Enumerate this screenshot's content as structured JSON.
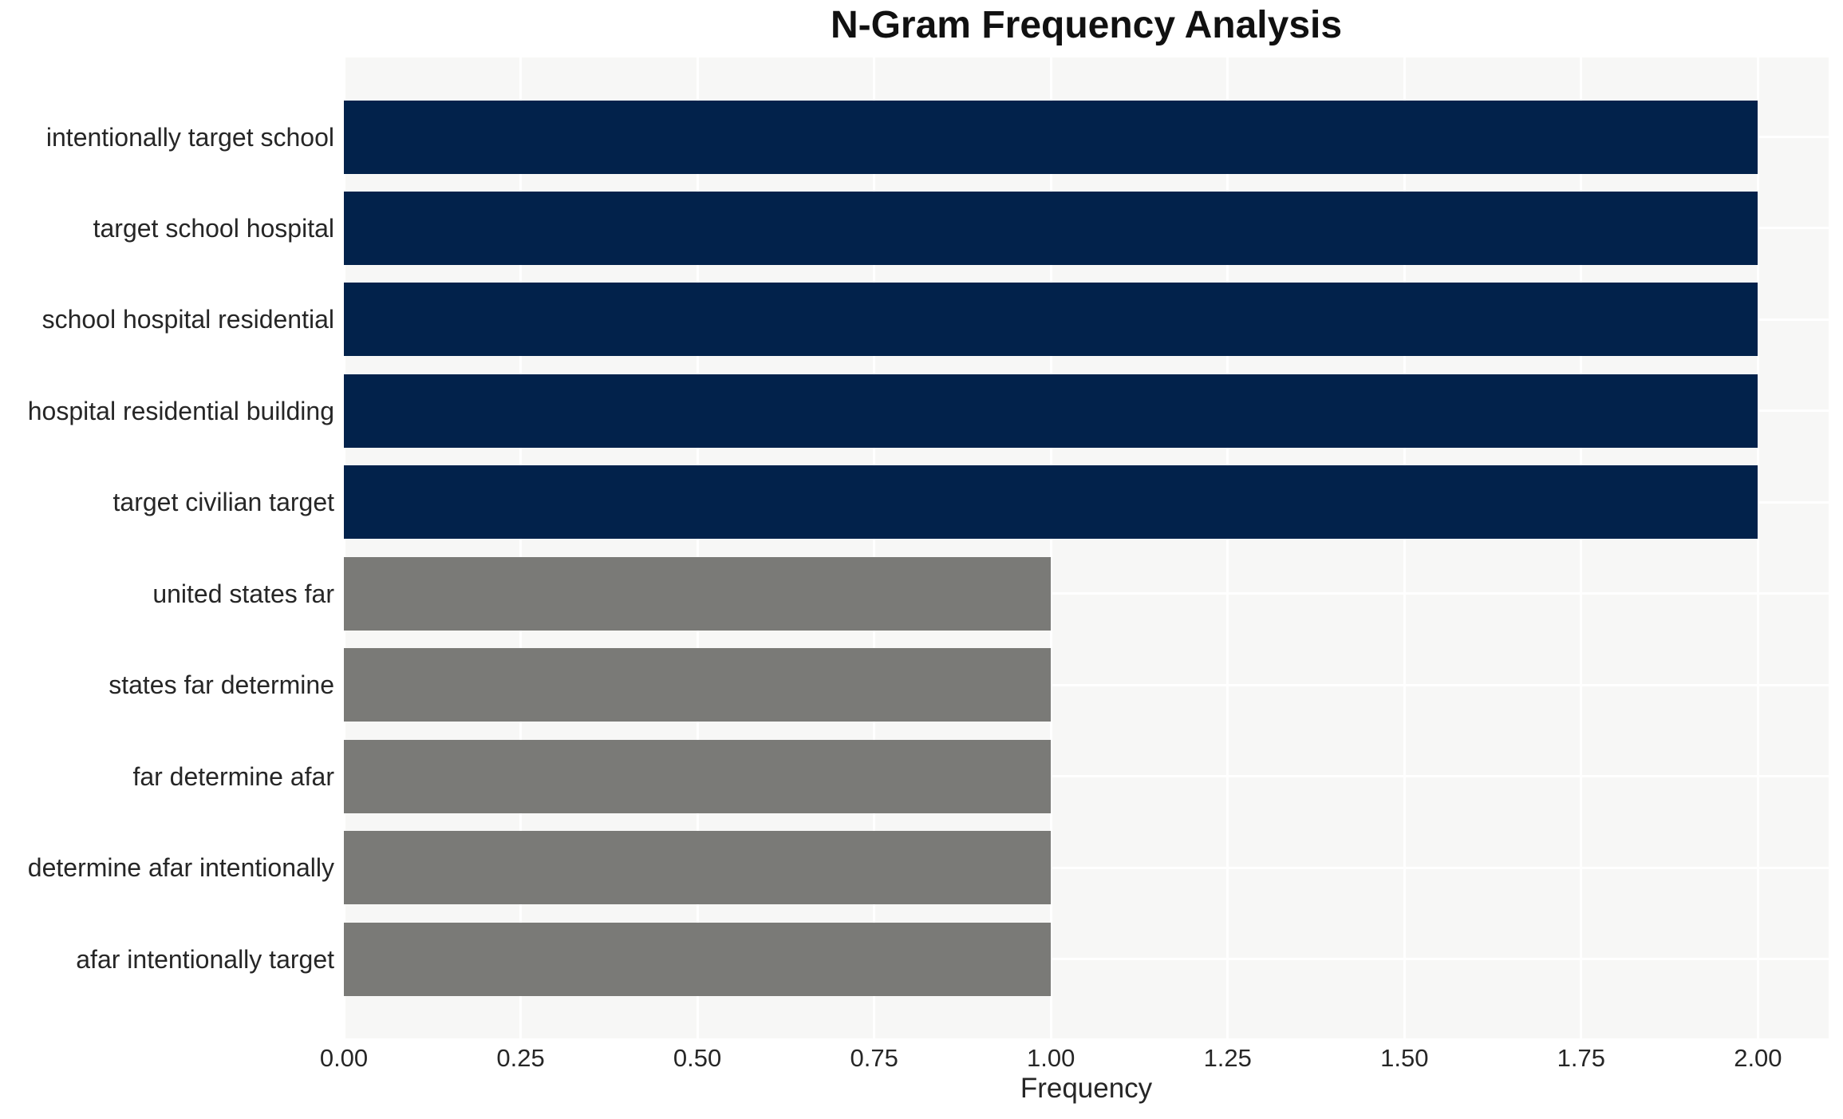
{
  "chart_data": {
    "type": "bar",
    "orientation": "horizontal",
    "title": "N-Gram Frequency Analysis",
    "xlabel": "Frequency",
    "ylabel": "",
    "categories": [
      "intentionally target school",
      "target school hospital",
      "school hospital residential",
      "hospital residential building",
      "target civilian target",
      "united states far",
      "states far determine",
      "far determine afar",
      "determine afar intentionally",
      "afar intentionally target"
    ],
    "values": [
      2,
      2,
      2,
      2,
      2,
      1,
      1,
      1,
      1,
      1
    ],
    "bar_colors": [
      "#02224b",
      "#02224b",
      "#02224b",
      "#02224b",
      "#02224b",
      "#7a7a77",
      "#7a7a77",
      "#7a7a77",
      "#7a7a77",
      "#7a7a77"
    ],
    "xlim": [
      0,
      2.1
    ],
    "xticks": [
      0,
      0.25,
      0.5,
      0.75,
      1.0,
      1.25,
      1.5,
      1.75,
      2.0
    ],
    "xtick_labels": [
      "0.00",
      "0.25",
      "0.50",
      "0.75",
      "1.00",
      "1.25",
      "1.50",
      "1.75",
      "2.00"
    ],
    "grid": true,
    "legend_position": "none",
    "colors": {
      "bar_high": "#02224b",
      "bar_low": "#7a7a77",
      "plot_background": "#f7f7f6",
      "gridline": "#ffffff",
      "text": "#262626",
      "page_background": "#ffffff"
    }
  }
}
